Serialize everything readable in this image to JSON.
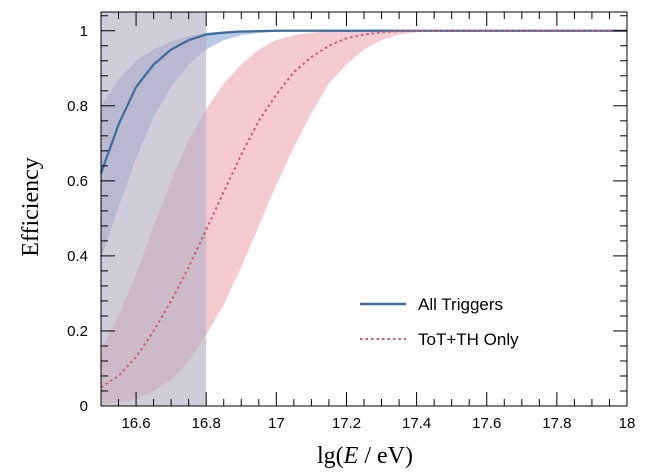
{
  "chart_data": {
    "type": "line",
    "xlabel_prefix": "lg(",
    "xlabel_var": "E",
    "xlabel_suffix": " / eV)",
    "ylabel": "Efficiency",
    "xlim": [
      16.5,
      18.0
    ],
    "ylim": [
      0,
      1.05
    ],
    "x_ticks": [
      16.6,
      16.8,
      17.0,
      17.2,
      17.4,
      17.6,
      17.8,
      18.0
    ],
    "x_tick_labels": [
      "16.6",
      "16.8",
      "17",
      "17.2",
      "17.4",
      "17.6",
      "17.8",
      "18"
    ],
    "y_ticks": [
      0,
      0.2,
      0.4,
      0.6,
      0.8,
      1.0
    ],
    "y_tick_labels": [
      "0",
      "0.2",
      "0.4",
      "0.6",
      "0.8",
      "1"
    ],
    "grid": false,
    "legend_position": "lower-right",
    "shaded_region": {
      "x_from": 16.5,
      "x_to": 16.8,
      "color": "#b7b0c4"
    },
    "series": [
      {
        "name": "All Triggers",
        "style": "solid",
        "color": "#3e6a9e",
        "band_color": "#7f9bd0",
        "x": [
          16.5,
          16.55,
          16.6,
          16.65,
          16.7,
          16.75,
          16.8,
          16.85,
          16.9,
          16.95,
          17.0,
          17.05,
          17.1,
          17.15,
          17.2,
          17.3,
          17.4,
          17.6,
          17.8,
          18.0
        ],
        "y": [
          0.62,
          0.75,
          0.85,
          0.91,
          0.95,
          0.975,
          0.99,
          0.995,
          0.998,
          0.999,
          1.0,
          1.0,
          1.0,
          1.0,
          1.0,
          1.0,
          1.0,
          1.0,
          1.0,
          1.0
        ],
        "lower": [
          0.39,
          0.53,
          0.66,
          0.77,
          0.85,
          0.91,
          0.95,
          0.975,
          0.988,
          0.994,
          0.997,
          0.999,
          1.0,
          1.0,
          1.0,
          1.0,
          1.0,
          1.0,
          1.0,
          1.0
        ],
        "upper": [
          0.8,
          0.87,
          0.92,
          0.95,
          0.972,
          0.986,
          0.995,
          0.998,
          0.999,
          1.0,
          1.0,
          1.0,
          1.0,
          1.0,
          1.0,
          1.0,
          1.0,
          1.0,
          1.0,
          1.0
        ]
      },
      {
        "name": "ToT+TH Only",
        "style": "dotted",
        "color": "#cc5a6e",
        "band_color": "#eea1a8",
        "x": [
          16.5,
          16.55,
          16.6,
          16.65,
          16.7,
          16.75,
          16.8,
          16.85,
          16.9,
          16.95,
          17.0,
          17.05,
          17.1,
          17.15,
          17.2,
          17.25,
          17.3,
          17.35,
          17.4,
          17.5,
          17.6,
          17.8,
          18.0
        ],
        "y": [
          0.05,
          0.08,
          0.13,
          0.2,
          0.28,
          0.37,
          0.47,
          0.57,
          0.67,
          0.76,
          0.83,
          0.89,
          0.93,
          0.96,
          0.98,
          0.99,
          0.996,
          0.999,
          1.0,
          1.0,
          1.0,
          1.0,
          1.0
        ],
        "lower": [
          0.003,
          0.01,
          0.02,
          0.04,
          0.07,
          0.12,
          0.19,
          0.27,
          0.37,
          0.48,
          0.59,
          0.69,
          0.78,
          0.86,
          0.91,
          0.95,
          0.975,
          0.99,
          0.996,
          1.0,
          1.0,
          1.0,
          1.0
        ],
        "upper": [
          0.15,
          0.24,
          0.35,
          0.48,
          0.6,
          0.71,
          0.79,
          0.86,
          0.91,
          0.95,
          0.975,
          0.988,
          0.995,
          0.998,
          1.0,
          1.0,
          1.0,
          1.0,
          1.0,
          1.0,
          1.0,
          1.0,
          1.0
        ]
      }
    ]
  }
}
